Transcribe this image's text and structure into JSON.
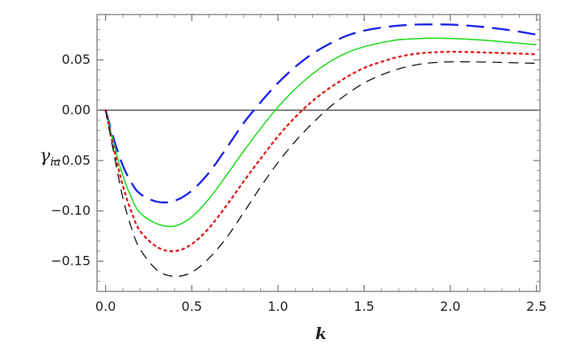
{
  "chart_data": {
    "type": "line",
    "title": "",
    "xlabel": "k",
    "ylabel": {
      "main": "γ",
      "sub": "ia"
    },
    "xlim": [
      -0.05,
      2.52
    ],
    "ylim": [
      -0.18,
      0.095
    ],
    "x_ticks": [
      {
        "value": 0.0,
        "label": "0.0"
      },
      {
        "value": 0.5,
        "label": "0.5"
      },
      {
        "value": 1.0,
        "label": "1.0"
      },
      {
        "value": 1.5,
        "label": "1.5"
      },
      {
        "value": 2.0,
        "label": "2.0"
      },
      {
        "value": 2.5,
        "label": "2.5"
      }
    ],
    "y_ticks": [
      {
        "value": 0.05,
        "label": "0.05"
      },
      {
        "value": 0.0,
        "label": "0.00"
      },
      {
        "value": -0.05,
        "label": "−0.05"
      },
      {
        "value": -0.1,
        "label": "−0.10"
      },
      {
        "value": -0.15,
        "label": "−0.15"
      }
    ],
    "grid": false,
    "zero_line": true,
    "series": [
      {
        "color": "#1f24e8",
        "style": "long-dash",
        "x": [
          0.0,
          0.05,
          0.1,
          0.15,
          0.2,
          0.3,
          0.4,
          0.5,
          0.6,
          0.7,
          0.8,
          0.9,
          1.0,
          1.1,
          1.2,
          1.3,
          1.4,
          1.5,
          1.6,
          1.7,
          1.8,
          1.9,
          2.0,
          2.1,
          2.2,
          2.3,
          2.4,
          2.5
        ],
        "y": [
          0.0,
          -0.03,
          -0.055,
          -0.072,
          -0.083,
          -0.091,
          -0.09,
          -0.08,
          -0.062,
          -0.038,
          -0.013,
          0.008,
          0.027,
          0.043,
          0.056,
          0.066,
          0.074,
          0.079,
          0.082,
          0.084,
          0.085,
          0.0852,
          0.085,
          0.084,
          0.0825,
          0.0805,
          0.078,
          0.075
        ]
      },
      {
        "color": "#22dd22",
        "style": "solid",
        "x": [
          0.0,
          0.05,
          0.1,
          0.15,
          0.2,
          0.3,
          0.4,
          0.5,
          0.6,
          0.7,
          0.8,
          0.9,
          1.0,
          1.1,
          1.2,
          1.3,
          1.4,
          1.5,
          1.6,
          1.7,
          1.8,
          1.9,
          2.0,
          2.1,
          2.2,
          2.3,
          2.4,
          2.5
        ],
        "y": [
          0.0,
          -0.035,
          -0.065,
          -0.087,
          -0.102,
          -0.113,
          -0.115,
          -0.106,
          -0.088,
          -0.065,
          -0.041,
          -0.018,
          0.003,
          0.021,
          0.036,
          0.048,
          0.057,
          0.063,
          0.067,
          0.07,
          0.071,
          0.0715,
          0.0712,
          0.0705,
          0.0695,
          0.068,
          0.0665,
          0.065
        ]
      },
      {
        "color": "#e02020",
        "style": "dotted",
        "x": [
          0.0,
          0.05,
          0.1,
          0.15,
          0.2,
          0.3,
          0.4,
          0.5,
          0.6,
          0.7,
          0.8,
          0.9,
          1.0,
          1.1,
          1.2,
          1.3,
          1.4,
          1.5,
          1.6,
          1.7,
          1.8,
          1.9,
          2.0,
          2.1,
          2.2,
          2.3,
          2.4,
          2.5
        ],
        "y": [
          0.0,
          -0.04,
          -0.075,
          -0.101,
          -0.12,
          -0.136,
          -0.14,
          -0.133,
          -0.117,
          -0.095,
          -0.071,
          -0.048,
          -0.026,
          -0.007,
          0.009,
          0.022,
          0.033,
          0.042,
          0.048,
          0.053,
          0.056,
          0.0575,
          0.058,
          0.0578,
          0.0573,
          0.0567,
          0.0562,
          0.0555
        ]
      },
      {
        "color": "#111111",
        "style": "dashed",
        "x": [
          0.0,
          0.05,
          0.1,
          0.15,
          0.2,
          0.3,
          0.4,
          0.5,
          0.6,
          0.7,
          0.8,
          0.9,
          1.0,
          1.1,
          1.2,
          1.3,
          1.4,
          1.5,
          1.6,
          1.7,
          1.8,
          1.9,
          2.0,
          2.1,
          2.2,
          2.3,
          2.4,
          2.5
        ],
        "y": [
          0.0,
          -0.045,
          -0.087,
          -0.117,
          -0.138,
          -0.159,
          -0.165,
          -0.161,
          -0.147,
          -0.127,
          -0.102,
          -0.076,
          -0.052,
          -0.031,
          -0.013,
          0.003,
          0.016,
          0.027,
          0.035,
          0.041,
          0.045,
          0.0472,
          0.048,
          0.048,
          0.0478,
          0.0474,
          0.047,
          0.0465
        ]
      }
    ]
  }
}
